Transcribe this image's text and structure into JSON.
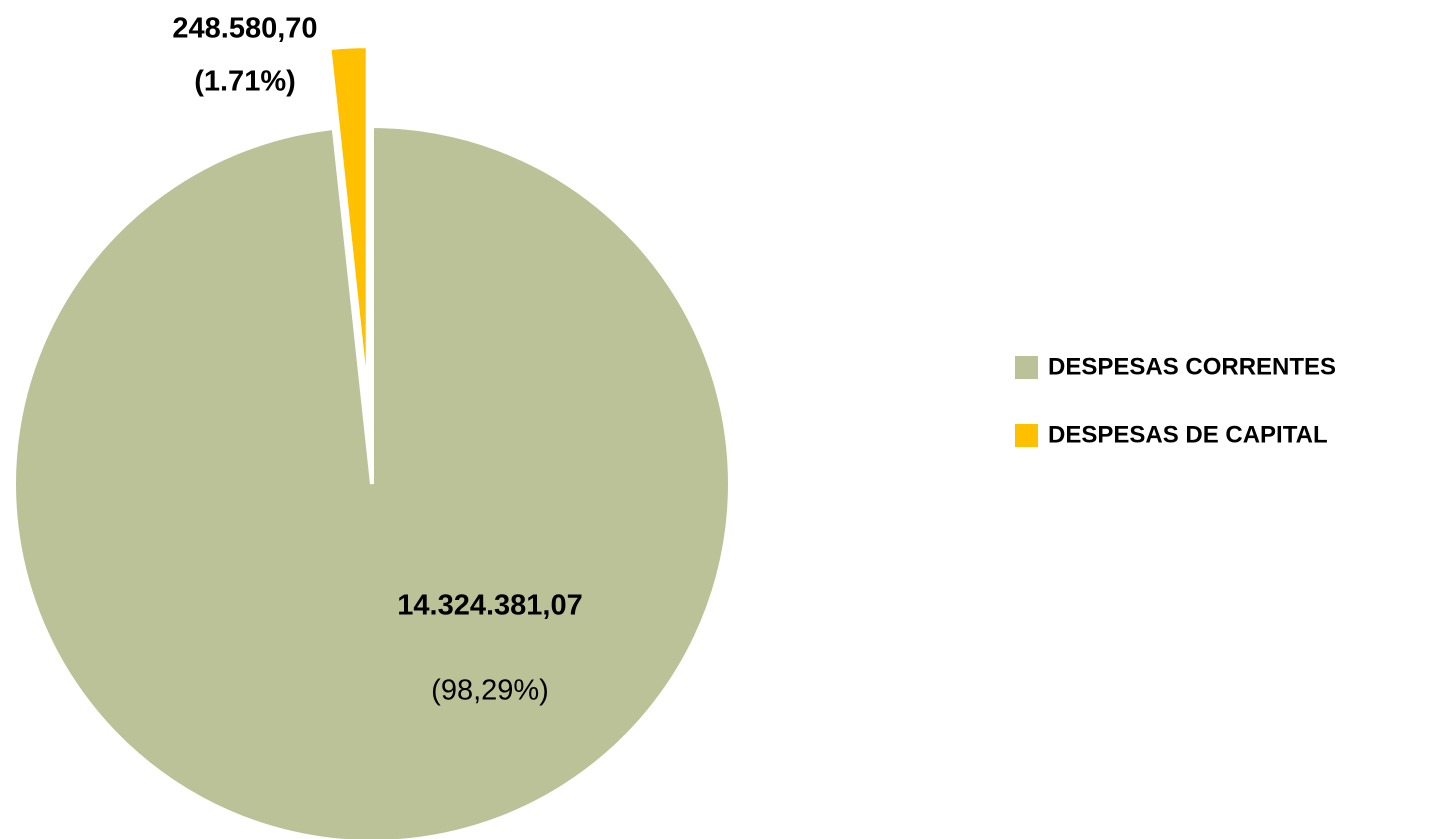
{
  "chart_data": {
    "type": "pie",
    "categories": [
      "DESPESAS CORRENTES",
      "DESPESAS DE CAPITAL"
    ],
    "values": [
      14324381.07,
      248580.7
    ],
    "value_labels": [
      "14.324.381,07",
      "248.580,70"
    ],
    "percents": [
      98.29,
      1.71
    ],
    "percent_labels": [
      "(98,29%)",
      "(1.71%)"
    ],
    "colors": [
      "#bcc298",
      "#ffc000"
    ],
    "legend": "right"
  }
}
